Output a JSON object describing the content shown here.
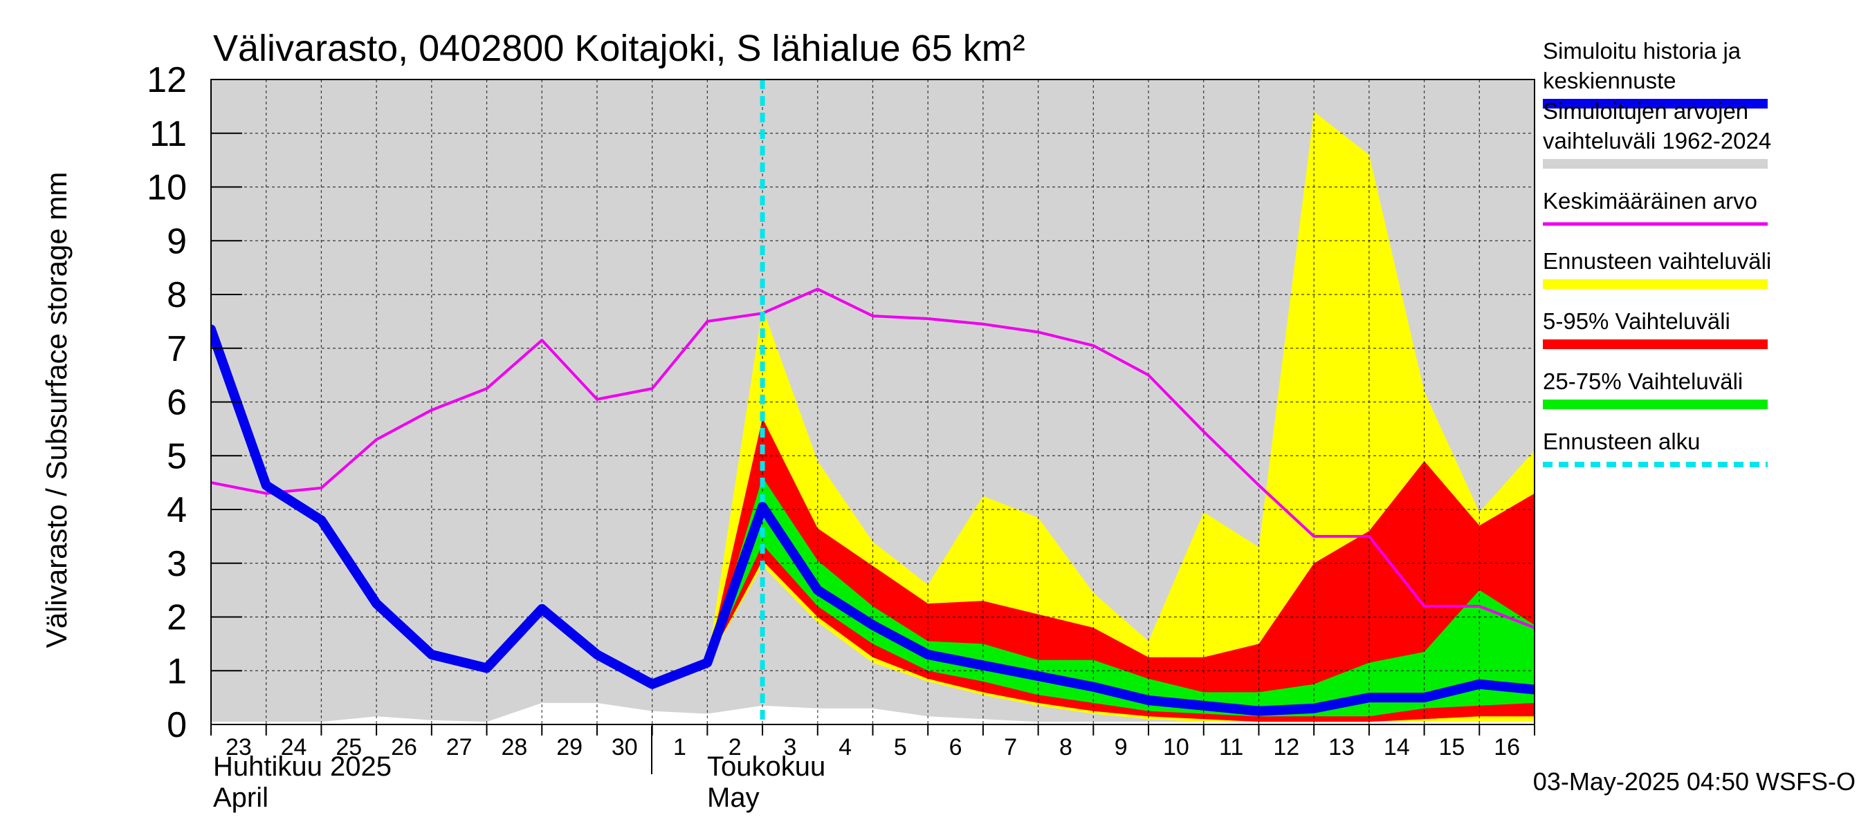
{
  "chart_data": {
    "type": "area",
    "title": "Välivarasto, 0402800 Koitajoki, S lähialue 65 km²",
    "ylabel": "Välivarasto / Subsurface storage  mm",
    "ylim": [
      0,
      12
    ],
    "yticks": [
      "0",
      "1",
      "2",
      "3",
      "4",
      "5",
      "6",
      "7",
      "8",
      "9",
      "10",
      "11",
      "12"
    ],
    "x_day_labels": [
      "23",
      "24",
      "25",
      "26",
      "27",
      "28",
      "29",
      "30",
      "1",
      "2",
      "3",
      "4",
      "5",
      "6",
      "7",
      "8",
      "9",
      "10",
      "11",
      "12",
      "13",
      "14",
      "15",
      "16"
    ],
    "month_labels": {
      "april_fi": "Huhtikuu  2025",
      "april_en": "April",
      "may_fi": "Toukokuu",
      "may_en": "May"
    },
    "grid": true,
    "legend_position": "right",
    "timestamp": "03-May-2025 04:50 WSFS-O",
    "forecast_start_day": 10,
    "colors": {
      "history_range": "#d3d3d3",
      "history": "#0000ee",
      "mean": "#ee00ee",
      "forecast_range": "#ffff00",
      "p5_95": "#ff0000",
      "p25_75": "#00ee00",
      "forecast_start": "#00e5ee"
    },
    "series": [
      {
        "name": "Simuloitujen arvojen vaihteluväli 1962-2024",
        "kind": "band",
        "x": [
          0,
          1,
          2,
          3,
          4,
          5,
          6,
          7,
          8,
          9,
          10,
          11,
          12,
          13,
          14,
          15,
          16,
          17,
          18,
          19,
          20,
          21,
          22,
          23,
          24
        ],
        "lower": [
          0.05,
          0.05,
          0.05,
          0.15,
          0.08,
          0.05,
          0.4,
          0.4,
          0.25,
          0.2,
          0.35,
          0.3,
          0.3,
          0.15,
          0.1,
          0.05,
          0.05,
          0.05,
          0.05,
          0.05,
          0.05,
          0.05,
          0.05,
          0.05,
          0.05
        ],
        "upper": [
          12,
          12,
          12,
          12,
          12,
          12,
          12,
          12,
          12,
          12,
          12,
          12,
          12,
          12,
          12,
          12,
          12,
          12,
          12,
          12,
          12,
          12,
          12,
          12,
          12
        ]
      },
      {
        "name": "Ennusteen vaihteluväli",
        "kind": "band",
        "x": [
          9,
          10,
          11,
          12,
          13,
          14,
          15,
          16,
          17,
          18,
          19,
          20,
          21,
          22,
          23,
          24
        ],
        "lower": [
          1.15,
          2.95,
          1.9,
          1.15,
          0.8,
          0.55,
          0.35,
          0.2,
          0.1,
          0.05,
          0.05,
          0.05,
          0.05,
          0.05,
          0.05,
          0.05
        ],
        "upper": [
          1.15,
          7.75,
          4.9,
          3.4,
          2.6,
          4.25,
          3.85,
          2.45,
          1.55,
          3.95,
          3.3,
          11.4,
          10.6,
          6.2,
          3.95,
          5.1
        ]
      },
      {
        "name": "5-95% Vaihteluväli",
        "kind": "band",
        "x": [
          9,
          10,
          11,
          12,
          13,
          14,
          15,
          16,
          17,
          18,
          19,
          20,
          21,
          22,
          23,
          24
        ],
        "lower": [
          1.15,
          3.05,
          2.0,
          1.25,
          0.85,
          0.6,
          0.4,
          0.25,
          0.15,
          0.1,
          0.05,
          0.05,
          0.05,
          0.1,
          0.15,
          0.15
        ],
        "upper": [
          1.15,
          5.7,
          3.65,
          2.95,
          2.25,
          2.3,
          2.05,
          1.8,
          1.25,
          1.25,
          1.5,
          3.0,
          3.6,
          4.9,
          3.7,
          4.3
        ]
      },
      {
        "name": "25-75% Vaihteluväli",
        "kind": "band",
        "x": [
          9,
          10,
          11,
          12,
          13,
          14,
          15,
          16,
          17,
          18,
          19,
          20,
          21,
          22,
          23,
          24
        ],
        "lower": [
          1.15,
          3.35,
          2.2,
          1.5,
          1.0,
          0.8,
          0.55,
          0.4,
          0.25,
          0.2,
          0.15,
          0.15,
          0.15,
          0.3,
          0.35,
          0.4
        ],
        "upper": [
          1.15,
          4.6,
          3.05,
          2.2,
          1.55,
          1.5,
          1.2,
          1.2,
          0.85,
          0.6,
          0.6,
          0.75,
          1.15,
          1.35,
          2.5,
          1.85
        ]
      },
      {
        "name": "Keskimääräinen arvo",
        "kind": "line",
        "x": [
          0,
          1,
          2,
          3,
          4,
          5,
          6,
          7,
          8,
          9,
          10,
          11,
          12,
          13,
          14,
          15,
          16,
          17,
          18,
          19,
          20,
          21,
          22,
          23,
          24
        ],
        "values": [
          4.5,
          4.3,
          4.4,
          5.3,
          5.85,
          6.25,
          7.15,
          6.05,
          6.25,
          7.5,
          7.65,
          8.1,
          7.6,
          7.55,
          7.45,
          7.3,
          7.05,
          6.5,
          5.45,
          4.45,
          3.5,
          3.5,
          2.2,
          2.2,
          1.8
        ]
      },
      {
        "name": "Simuloitu historia ja keskiennuste",
        "kind": "line",
        "x": [
          0,
          1,
          2,
          3,
          4,
          5,
          6,
          7,
          8,
          9,
          10,
          11,
          12,
          13,
          14,
          15,
          16,
          17,
          18,
          19,
          20,
          21,
          22,
          23,
          24
        ],
        "values": [
          7.35,
          4.45,
          3.8,
          2.25,
          1.3,
          1.05,
          2.15,
          1.3,
          0.75,
          1.15,
          4.05,
          2.5,
          1.85,
          1.3,
          1.1,
          0.9,
          0.7,
          0.45,
          0.35,
          0.25,
          0.3,
          0.5,
          0.5,
          0.75,
          0.65
        ]
      }
    ]
  },
  "legend": {
    "items": [
      {
        "label_line1": "Simuloitu historia ja",
        "label_line2": "keskiennuste",
        "swatch": "history"
      },
      {
        "label_line1": "Simuloitujen arvojen",
        "label_line2": "vaihteluväli 1962-2024",
        "swatch": "range"
      },
      {
        "label_line1": "Keskimääräinen arvo",
        "label_line2": "",
        "swatch": "mean"
      },
      {
        "label_line1": "Ennusteen vaihteluväli",
        "label_line2": "",
        "swatch": "forecast"
      },
      {
        "label_line1": "5-95% Vaihteluväli",
        "label_line2": "",
        "swatch": "p5_95"
      },
      {
        "label_line1": "25-75% Vaihteluväli",
        "label_line2": "",
        "swatch": "p25_75"
      },
      {
        "label_line1": "Ennusteen alku",
        "label_line2": "",
        "swatch": "start"
      }
    ]
  }
}
